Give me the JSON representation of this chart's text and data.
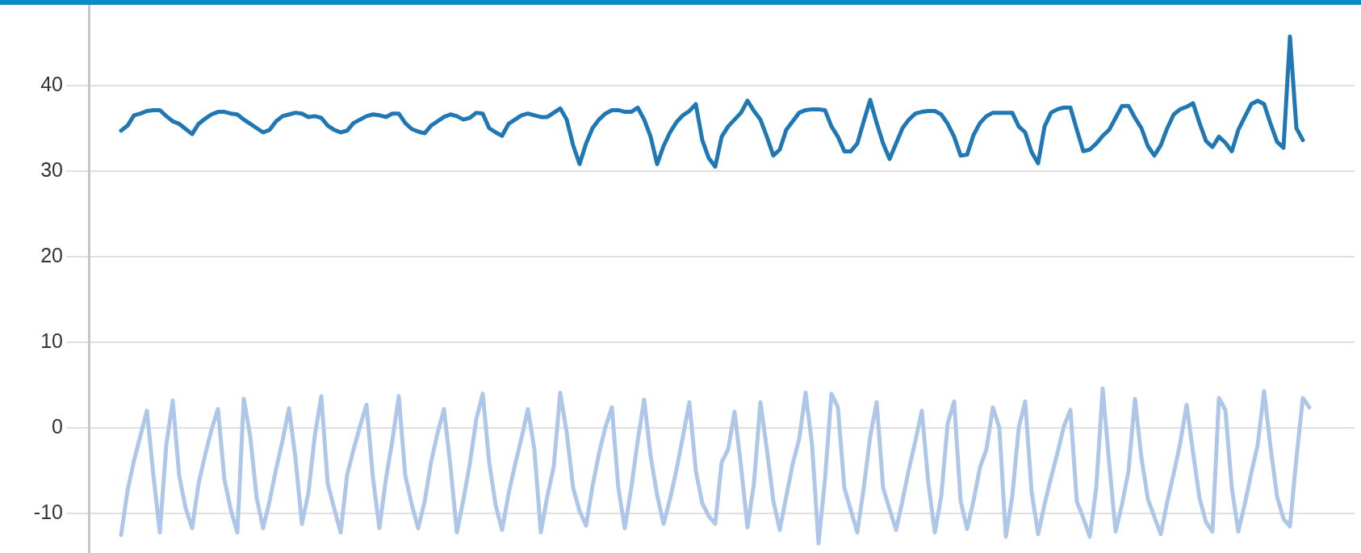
{
  "chart_data": {
    "type": "line",
    "categories": [
      null,
      null,
      null,
      null,
      null,
      null,
      null,
      null,
      null,
      null,
      null,
      null,
      null,
      null,
      null,
      null,
      null,
      null,
      null,
      null,
      null,
      null,
      null,
      null,
      null,
      null,
      null,
      null,
      null,
      null,
      null,
      null,
      null,
      null,
      null,
      null,
      null,
      null,
      null,
      null,
      null,
      null,
      null,
      null,
      null,
      null,
      null,
      null,
      null,
      null,
      null,
      null,
      null,
      null,
      null,
      null,
      null,
      null,
      null,
      null,
      null,
      null,
      null,
      null,
      null,
      null,
      null,
      null,
      null,
      null,
      null,
      null,
      null,
      null,
      null,
      null,
      null,
      null,
      null,
      null,
      null,
      null,
      null,
      null,
      null,
      null,
      null,
      null,
      null,
      null,
      null,
      null,
      null,
      null,
      null,
      null,
      null,
      null,
      null,
      null,
      null,
      null,
      null,
      null,
      null,
      null,
      null,
      null,
      null,
      null,
      null,
      null,
      null,
      null,
      null,
      null,
      null,
      null,
      null,
      null,
      null,
      null,
      null,
      null,
      null,
      null,
      null,
      null,
      null,
      null,
      null,
      null,
      null,
      null,
      null,
      null,
      null,
      null,
      null,
      null,
      null,
      null,
      null,
      null,
      null,
      null,
      null,
      null,
      null,
      null,
      null,
      null,
      null,
      null,
      null,
      null,
      null,
      null,
      null,
      null,
      null,
      null,
      null,
      null,
      null,
      null,
      null,
      null,
      null,
      null,
      null,
      null,
      null,
      null,
      null,
      null,
      null,
      null,
      null,
      null,
      null,
      null,
      null,
      null,
      null,
      null,
      null,
      null,
      null,
      null,
      null,
      null,
      null,
      null,
      null,
      null,
      null
    ],
    "series": [
      {
        "color": "#1f77b4",
        "values": [
          null,
          null,
          null,
          null,
          null,
          34.7,
          35.3,
          36.5,
          36.7,
          37.0,
          37.1,
          37.1,
          36.4,
          35.8,
          35.5,
          34.9,
          34.3,
          35.5,
          36.1,
          36.6,
          36.9,
          36.9,
          36.7,
          36.6,
          36.0,
          35.5,
          35.0,
          34.5,
          34.8,
          35.8,
          36.4,
          36.6,
          36.8,
          36.7,
          36.3,
          36.4,
          36.2,
          35.3,
          34.8,
          34.5,
          34.7,
          35.6,
          36.0,
          36.4,
          36.6,
          36.5,
          36.3,
          36.7,
          36.7,
          35.6,
          34.9,
          34.6,
          34.4,
          35.3,
          35.8,
          36.3,
          36.6,
          36.4,
          36.0,
          36.2,
          36.8,
          36.7,
          35.0,
          34.5,
          34.1,
          35.5,
          36.0,
          36.5,
          36.7,
          36.5,
          36.3,
          36.3,
          36.8,
          37.3,
          36.0,
          33.0,
          30.8,
          33.2,
          35.0,
          36.0,
          36.7,
          37.1,
          37.1,
          36.9,
          36.9,
          37.4,
          36.0,
          34.0,
          30.8,
          32.9,
          34.5,
          35.7,
          36.5,
          37.0,
          37.8,
          33.6,
          31.5,
          30.5,
          34.0,
          35.2,
          36.0,
          36.8,
          38.2,
          37.0,
          36.0,
          34.0,
          31.8,
          32.5,
          34.8,
          35.8,
          36.8,
          37.1,
          37.2,
          37.2,
          37.1,
          35.2,
          34.0,
          32.3,
          32.3,
          33.2,
          35.8,
          38.3,
          35.6,
          33.2,
          31.4,
          33.2,
          35.0,
          36.0,
          36.7,
          36.9,
          37.0,
          37.0,
          36.6,
          35.5,
          34.0,
          31.8,
          31.9,
          34.2,
          35.6,
          36.4,
          36.8,
          36.8,
          36.8,
          36.8,
          35.2,
          34.5,
          32.2,
          30.9,
          35.2,
          36.8,
          37.2,
          37.4,
          37.4,
          34.8,
          32.3,
          32.5,
          33.2,
          34.1,
          34.8,
          36.2,
          37.6,
          37.6,
          36.2,
          35.0,
          32.9,
          31.8,
          33.0,
          35.0,
          36.6,
          37.2,
          37.5,
          37.9,
          35.6,
          33.5,
          32.8,
          34.0,
          33.3,
          32.3,
          34.8,
          36.3,
          37.8,
          38.2,
          37.8,
          35.5,
          33.4,
          32.7,
          45.7,
          35.0,
          33.6,
          null,
          null,
          null,
          null,
          null,
          null,
          null,
          null
        ]
      },
      {
        "color": "#aec7e8",
        "values": [
          null,
          null,
          null,
          null,
          null,
          -12.5,
          -7.3,
          -3.8,
          -0.9,
          2.0,
          -5.5,
          -12.2,
          -2.0,
          3.2,
          -5.6,
          -9.4,
          -11.7,
          -6.5,
          -3.2,
          -0.2,
          2.2,
          -6.0,
          -9.6,
          -12.2,
          3.4,
          -1.0,
          -8.2,
          -11.7,
          -8.5,
          -4.8,
          -1.5,
          2.3,
          -3.5,
          -11.2,
          -7.6,
          -0.9,
          3.7,
          -6.5,
          -9.4,
          -12.2,
          -5.5,
          -2.5,
          0.2,
          2.7,
          -5.8,
          -11.7,
          -6.0,
          -1.5,
          3.7,
          -5.5,
          -8.9,
          -11.7,
          -8.6,
          -4.0,
          -0.6,
          2.2,
          -4.5,
          -12.2,
          -8.4,
          -4.2,
          1.0,
          4.0,
          -4.0,
          -9.0,
          -11.9,
          -7.7,
          -4.3,
          -1.2,
          2.2,
          -2.5,
          -12.2,
          -8.0,
          -4.5,
          4.1,
          -0.5,
          -7.0,
          -9.7,
          -11.4,
          -6.8,
          -3.0,
          0.1,
          2.4,
          -7.0,
          -11.7,
          -7.0,
          -1.5,
          3.3,
          -3.3,
          -7.8,
          -11.2,
          -8.3,
          -4.9,
          -1.0,
          3.0,
          -5.0,
          -8.8,
          -10.3,
          -11.2,
          -4.0,
          -2.5,
          1.9,
          -4.5,
          -11.6,
          -6.5,
          3.0,
          -2.5,
          -8.5,
          -11.9,
          -8.0,
          -4.2,
          -1.3,
          4.1,
          -2.0,
          -13.5,
          -6.0,
          4.0,
          2.4,
          -7.0,
          -9.6,
          -12.2,
          -7.0,
          -1.0,
          3.0,
          -7.0,
          -9.5,
          -11.9,
          -8.5,
          -4.8,
          -1.5,
          2.0,
          -6.4,
          -12.2,
          -8.0,
          0.5,
          3.1,
          -8.5,
          -11.8,
          -8.5,
          -4.6,
          -2.5,
          2.4,
          0.0,
          -12.7,
          -8.0,
          0.0,
          3.1,
          -7.5,
          -12.4,
          -8.9,
          -5.8,
          -2.9,
          0.2,
          2.1,
          -8.6,
          -10.5,
          -12.7,
          -7.0,
          4.6,
          -4.0,
          -12.1,
          -8.9,
          -5.0,
          3.4,
          -3.5,
          -8.3,
          -10.4,
          -12.4,
          -8.6,
          -5.3,
          -1.8,
          2.7,
          -2.9,
          -8.2,
          -11.0,
          -12.1,
          3.5,
          2.1,
          -7.0,
          -12.1,
          -8.9,
          -5.3,
          -2.0,
          4.3,
          -2.3,
          -8.0,
          -10.6,
          -11.5,
          -3.5,
          3.5,
          2.4,
          null,
          null,
          null,
          null,
          null,
          null,
          null
        ]
      }
    ],
    "ylim": [
      -14.6,
      49.3
    ],
    "yticks": [
      -10,
      0,
      10,
      20,
      30,
      40
    ],
    "grid": "y",
    "tick_labels": "y"
  }
}
